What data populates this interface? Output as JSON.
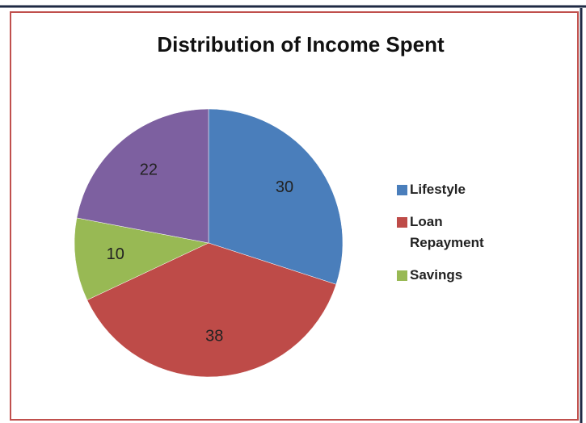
{
  "chart_data": {
    "type": "pie",
    "title": "Distribution of Income Spent",
    "categories": [
      "Lifestyle",
      "Loan Repayment",
      "Savings",
      null
    ],
    "values": [
      30,
      38,
      10,
      22
    ],
    "colors": [
      "#4a7ebb",
      "#be4b48",
      "#98b954",
      "#7d60a0"
    ],
    "legend": "right"
  }
}
